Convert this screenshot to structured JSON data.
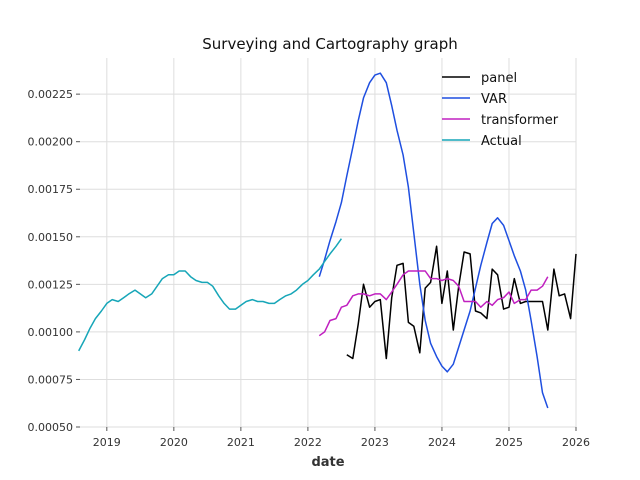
{
  "chart_data": {
    "type": "line",
    "title": "Surveying and Cartography graph",
    "xlabel": "date",
    "ylabel": "",
    "x_ticks": [
      "2019",
      "2020",
      "2021",
      "2022",
      "2023",
      "2024",
      "2025",
      "2026"
    ],
    "y_ticks": [
      "0.00050",
      "0.00075",
      "0.00100",
      "0.00125",
      "0.00150",
      "0.00175",
      "0.00200",
      "0.00225"
    ],
    "xlim": [
      2018.6,
      2026.0
    ],
    "ylim": [
      0.0005,
      0.00244
    ],
    "grid": true,
    "legend_position": "top-right",
    "series": [
      {
        "name": "panel",
        "color": "#000000",
        "x": [
          2022.58,
          2022.67,
          2022.75,
          2022.83,
          2022.92,
          2023.0,
          2023.08,
          2023.17,
          2023.25,
          2023.33,
          2023.42,
          2023.5,
          2023.58,
          2023.67,
          2023.75,
          2023.83,
          2023.92,
          2024.0,
          2024.08,
          2024.17,
          2024.25,
          2024.33,
          2024.42,
          2024.5,
          2024.58,
          2024.67,
          2024.75,
          2024.83,
          2024.92,
          2025.0,
          2025.08,
          2025.17,
          2025.25,
          2025.33,
          2025.42,
          2025.5,
          2025.58,
          2025.67,
          2025.75,
          2025.83,
          2025.92,
          2026.0
        ],
        "y": [
          0.00088,
          0.00086,
          0.00104,
          0.00125,
          0.00113,
          0.00116,
          0.00117,
          0.00086,
          0.00118,
          0.00135,
          0.00136,
          0.00105,
          0.00103,
          0.00089,
          0.00123,
          0.00126,
          0.00145,
          0.00115,
          0.00132,
          0.00101,
          0.00124,
          0.00142,
          0.00141,
          0.00111,
          0.0011,
          0.00107,
          0.00133,
          0.0013,
          0.00112,
          0.00113,
          0.00128,
          0.00115,
          0.00116,
          0.00116,
          0.00116,
          0.00116,
          0.00101,
          0.00133,
          0.00119,
          0.0012,
          0.00107,
          0.00141
        ]
      },
      {
        "name": "VAR",
        "color": "#1f4fe0",
        "x": [
          2022.17,
          2022.25,
          2022.33,
          2022.42,
          2022.5,
          2022.58,
          2022.67,
          2022.75,
          2022.83,
          2022.92,
          2023.0,
          2023.08,
          2023.17,
          2023.25,
          2023.33,
          2023.42,
          2023.5,
          2023.58,
          2023.67,
          2023.75,
          2023.83,
          2023.92,
          2024.0,
          2024.08,
          2024.17,
          2024.25,
          2024.33,
          2024.42,
          2024.5,
          2024.58,
          2024.67,
          2024.75,
          2024.83,
          2024.92,
          2025.0,
          2025.08,
          2025.17,
          2025.25,
          2025.33,
          2025.42,
          2025.5,
          2025.58
        ],
        "y": [
          0.00129,
          0.00138,
          0.00148,
          0.00158,
          0.00168,
          0.00182,
          0.00197,
          0.00211,
          0.00223,
          0.00231,
          0.00235,
          0.00236,
          0.00231,
          0.00219,
          0.00206,
          0.00193,
          0.00176,
          0.00152,
          0.00125,
          0.00106,
          0.00094,
          0.00087,
          0.00082,
          0.00079,
          0.00083,
          0.00092,
          0.00101,
          0.00111,
          0.00123,
          0.00135,
          0.00147,
          0.00157,
          0.0016,
          0.00156,
          0.00148,
          0.0014,
          0.00132,
          0.00122,
          0.00106,
          0.00087,
          0.00068,
          0.0006
        ]
      },
      {
        "name": "transformer",
        "color": "#c020c0",
        "x": [
          2022.17,
          2022.25,
          2022.33,
          2022.42,
          2022.5,
          2022.58,
          2022.67,
          2022.75,
          2022.83,
          2022.92,
          2023.0,
          2023.08,
          2023.17,
          2023.25,
          2023.33,
          2023.42,
          2023.5,
          2023.58,
          2023.67,
          2023.75,
          2023.83,
          2023.92,
          2024.0,
          2024.08,
          2024.17,
          2024.25,
          2024.33,
          2024.42,
          2024.5,
          2024.58,
          2024.67,
          2024.75,
          2024.83,
          2024.92,
          2025.0,
          2025.08,
          2025.17,
          2025.25,
          2025.33,
          2025.42,
          2025.5,
          2025.58
        ],
        "y": [
          0.00098,
          0.001,
          0.00106,
          0.00107,
          0.00113,
          0.00114,
          0.00119,
          0.0012,
          0.0012,
          0.00119,
          0.0012,
          0.0012,
          0.00117,
          0.00121,
          0.00125,
          0.0013,
          0.00132,
          0.00132,
          0.00132,
          0.00132,
          0.00128,
          0.00128,
          0.00127,
          0.00128,
          0.00127,
          0.00124,
          0.00116,
          0.00116,
          0.00116,
          0.00113,
          0.00116,
          0.00114,
          0.00117,
          0.00118,
          0.00121,
          0.00115,
          0.00117,
          0.00117,
          0.00122,
          0.00122,
          0.00124,
          0.00129
        ]
      },
      {
        "name": "Actual",
        "color": "#17a6b8",
        "x": [
          2018.58,
          2018.67,
          2018.75,
          2018.83,
          2018.92,
          2019.0,
          2019.08,
          2019.17,
          2019.25,
          2019.33,
          2019.42,
          2019.5,
          2019.58,
          2019.67,
          2019.75,
          2019.83,
          2019.92,
          2020.0,
          2020.08,
          2020.17,
          2020.25,
          2020.33,
          2020.42,
          2020.5,
          2020.58,
          2020.67,
          2020.75,
          2020.83,
          2020.92,
          2021.0,
          2021.08,
          2021.17,
          2021.25,
          2021.33,
          2021.42,
          2021.5,
          2021.58,
          2021.67,
          2021.75,
          2021.83,
          2021.92,
          2022.0,
          2022.08,
          2022.17,
          2022.25,
          2022.33,
          2022.42,
          2022.5
        ],
        "y": [
          0.0009,
          0.00096,
          0.00102,
          0.00107,
          0.00111,
          0.00115,
          0.00117,
          0.00116,
          0.00118,
          0.0012,
          0.00122,
          0.0012,
          0.00118,
          0.0012,
          0.00124,
          0.00128,
          0.0013,
          0.0013,
          0.00132,
          0.00132,
          0.00129,
          0.00127,
          0.00126,
          0.00126,
          0.00124,
          0.00119,
          0.00115,
          0.00112,
          0.00112,
          0.00114,
          0.00116,
          0.00117,
          0.00116,
          0.00116,
          0.00115,
          0.00115,
          0.00117,
          0.00119,
          0.0012,
          0.00122,
          0.00125,
          0.00127,
          0.0013,
          0.00133,
          0.00137,
          0.00141,
          0.00145,
          0.00149
        ]
      }
    ]
  }
}
